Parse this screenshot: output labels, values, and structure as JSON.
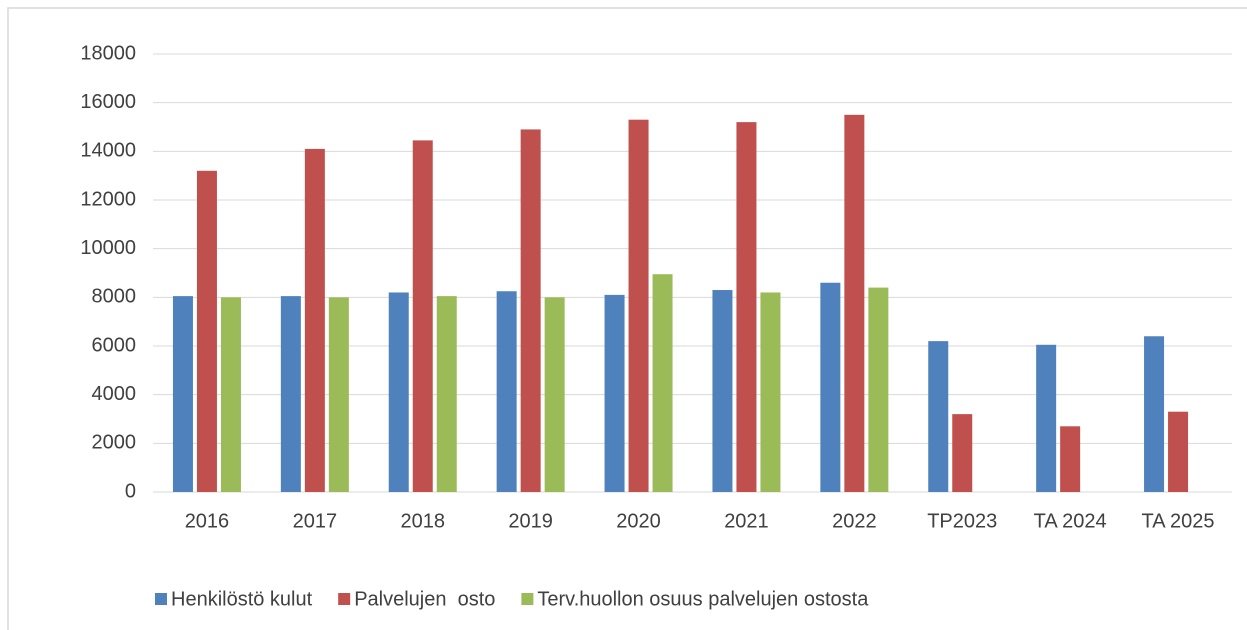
{
  "chart_data": {
    "type": "bar",
    "categories": [
      "2016",
      "2017",
      "2018",
      "2019",
      "2020",
      "2021",
      "2022",
      "TP2023",
      "TA 2024",
      "TA 2025"
    ],
    "series": [
      {
        "name": "Henkilöstö kulut",
        "color": "#4f81bd",
        "values": [
          8050,
          8050,
          8200,
          8250,
          8100,
          8300,
          8600,
          6200,
          6050,
          6400
        ]
      },
      {
        "name": "Palvelujen  osto",
        "color": "#c0504d",
        "values": [
          13200,
          14100,
          14450,
          14900,
          15300,
          15200,
          15500,
          3200,
          2700,
          3300
        ]
      },
      {
        "name": "Terv.huollon osuus palvelujen ostosta",
        "color": "#9bbb59",
        "values": [
          8000,
          8000,
          8050,
          8000,
          8950,
          8200,
          8400,
          null,
          null,
          null
        ]
      }
    ],
    "ylim": [
      0,
      18000
    ],
    "yticks": [
      0,
      2000,
      4000,
      6000,
      8000,
      10000,
      12000,
      14000,
      16000,
      18000
    ],
    "grid": true,
    "legend": "bottom"
  }
}
